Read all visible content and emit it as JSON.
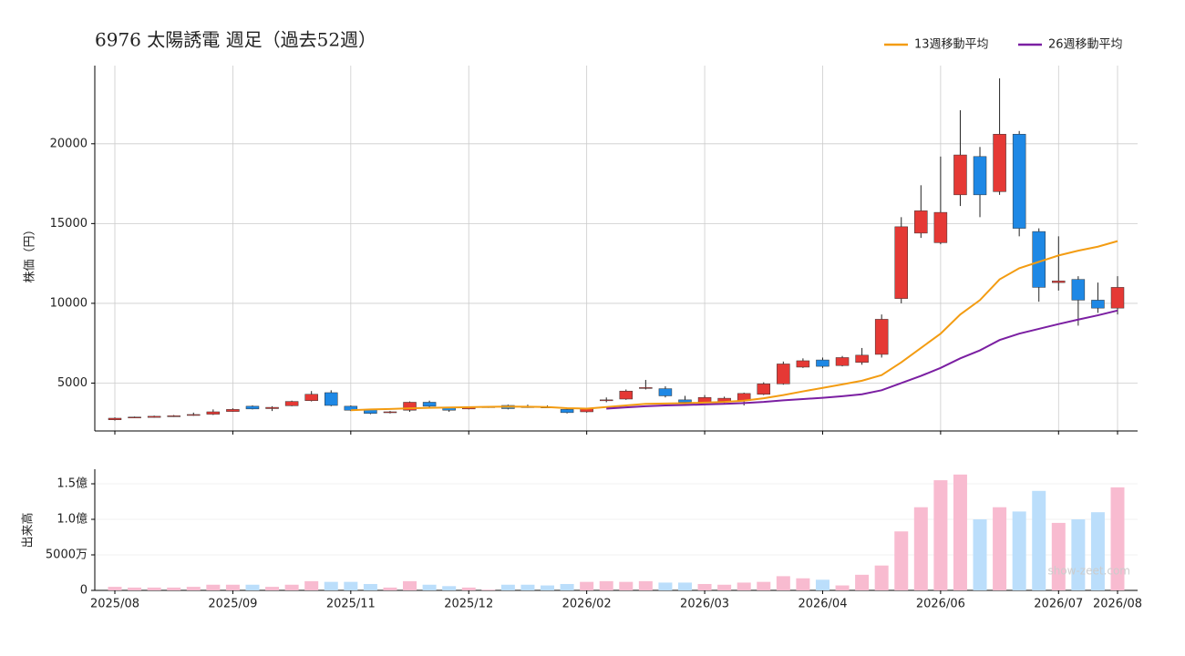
{
  "chart_data": [
    {
      "type": "candlestick",
      "title": "6976 太陽誘電  週足（過去52週）",
      "ylabel": "株価（円）",
      "open": [
        2700,
        2850,
        2850,
        2900,
        2980,
        3050,
        3220,
        3550,
        3400,
        3580,
        3900,
        4400,
        3550,
        3350,
        3150,
        3300,
        3800,
        3450,
        3380,
        3500,
        3600,
        3520,
        3500,
        3350,
        3200,
        3900,
        4000,
        4680,
        4650,
        3950,
        3800,
        3850,
        3900,
        4300,
        4950,
        6000,
        6450,
        6100,
        6300,
        6800,
        10300,
        14400,
        13800,
        16800,
        19200,
        17000,
        20600,
        14500,
        11300,
        11500,
        10200,
        9700
      ],
      "high": [
        2850,
        2900,
        2960,
        3000,
        3150,
        3350,
        3420,
        3600,
        3550,
        3900,
        4500,
        4550,
        3600,
        3400,
        3250,
        3850,
        3900,
        3500,
        3520,
        3550,
        3650,
        3650,
        3600,
        3400,
        3450,
        4100,
        4600,
        5200,
        4800,
        4200,
        4250,
        4150,
        4400,
        5050,
        6350,
        6550,
        6600,
        6700,
        7200,
        9300,
        15400,
        17400,
        19200,
        22100,
        19800,
        24100,
        20800,
        14700,
        14200,
        11700,
        11300,
        11700
      ],
      "low": [
        2650,
        2820,
        2830,
        2880,
        2950,
        3000,
        3200,
        3350,
        3250,
        3550,
        3850,
        3550,
        3250,
        3050,
        3100,
        3200,
        3450,
        3200,
        3350,
        3450,
        3350,
        3450,
        3430,
        3100,
        3150,
        3800,
        3950,
        4600,
        4100,
        3750,
        3750,
        3750,
        3600,
        4250,
        4900,
        5950,
        5950,
        6050,
        6150,
        6600,
        10000,
        14100,
        13700,
        16100,
        15400,
        16800,
        14200,
        10100,
        10800,
        8600,
        9400,
        9300
      ],
      "close": [
        2800,
        2870,
        2920,
        2950,
        3030,
        3200,
        3350,
        3380,
        3480,
        3850,
        4300,
        3600,
        3300,
        3100,
        3200,
        3800,
        3550,
        3300,
        3480,
        3520,
        3400,
        3500,
        3480,
        3150,
        3400,
        3950,
        4500,
        4720,
        4200,
        3800,
        4100,
        4050,
        4350,
        4950,
        6200,
        6400,
        6050,
        6600,
        6750,
        9000,
        14800,
        15800,
        15700,
        19300,
        16800,
        20600,
        14700,
        11000,
        11400,
        10200,
        9700,
        11000
      ],
      "up_color": "#e53935",
      "down_color": "#1e88e5",
      "series": [
        {
          "name": "13週移動平均",
          "color": "#f39c12",
          "values": [
            null,
            null,
            null,
            null,
            null,
            null,
            null,
            null,
            null,
            null,
            null,
            null,
            3300,
            3350,
            3380,
            3420,
            3450,
            3470,
            3490,
            3510,
            3530,
            3520,
            3500,
            3430,
            3400,
            3500,
            3600,
            3700,
            3720,
            3740,
            3780,
            3820,
            3900,
            4050,
            4250,
            4480,
            4700,
            4920,
            5150,
            5500,
            6300,
            7200,
            8100,
            9300,
            10200,
            11500,
            12200,
            12600,
            13000,
            13300,
            13550,
            13900
          ]
        },
        {
          "name": "26週移動平均",
          "color": "#7b1fa2",
          "values": [
            null,
            null,
            null,
            null,
            null,
            null,
            null,
            null,
            null,
            null,
            null,
            null,
            null,
            null,
            null,
            null,
            null,
            null,
            null,
            null,
            null,
            null,
            null,
            null,
            null,
            3400,
            3480,
            3550,
            3600,
            3630,
            3660,
            3700,
            3750,
            3820,
            3920,
            4000,
            4080,
            4180,
            4300,
            4550,
            5000,
            5450,
            5950,
            6550,
            7050,
            7700,
            8100,
            8400,
            8700,
            8980,
            9250,
            9550
          ]
        }
      ],
      "ylim": [
        2000,
        24900
      ],
      "yticks": [
        5000,
        10000,
        15000,
        20000
      ],
      "grid": true,
      "legend": "upper right"
    },
    {
      "type": "bar",
      "ylabel": "出来高",
      "categories": [
        "2025/08",
        null,
        null,
        null,
        null,
        null,
        "2025/09",
        null,
        null,
        null,
        null,
        null,
        "2025/11",
        null,
        null,
        null,
        null,
        null,
        "2025/12",
        null,
        null,
        null,
        null,
        null,
        "2026/02",
        null,
        null,
        null,
        null,
        null,
        "2026/03",
        null,
        null,
        null,
        null,
        null,
        "2026/04",
        null,
        null,
        null,
        null,
        null,
        "2026/06",
        null,
        null,
        null,
        null,
        null,
        "2026/07",
        null,
        null,
        "2026/08"
      ],
      "values": [
        5000000,
        4000000,
        4000000,
        4000000,
        5000000,
        8000000,
        8000000,
        8000000,
        5000000,
        8000000,
        13000000,
        12000000,
        12000000,
        9000000,
        4000000,
        13000000,
        8000000,
        6000000,
        4000000,
        1000000,
        8000000,
        8000000,
        7000000,
        9000000,
        12000000,
        13000000,
        12000000,
        13000000,
        11000000,
        11000000,
        9000000,
        8000000,
        11000000,
        12000000,
        20000000,
        17000000,
        15000000,
        7000000,
        22000000,
        35000000,
        83000000,
        117000000,
        155000000,
        163000000,
        100000000,
        117000000,
        111000000,
        140000000,
        95000000,
        100000000,
        110000000,
        145000000
      ],
      "up_color": "#f8bbd0",
      "down_color": "#bbdefb",
      "ylim": [
        0,
        170500000
      ],
      "yticks": [
        0,
        {
          "value": 50000000,
          "label": "5000万"
        },
        {
          "value": 100000000,
          "label": "1.0億"
        },
        {
          "value": 150000000,
          "label": "1.5億"
        }
      ],
      "grid": true,
      "watermark": "show-zeet.com"
    }
  ]
}
